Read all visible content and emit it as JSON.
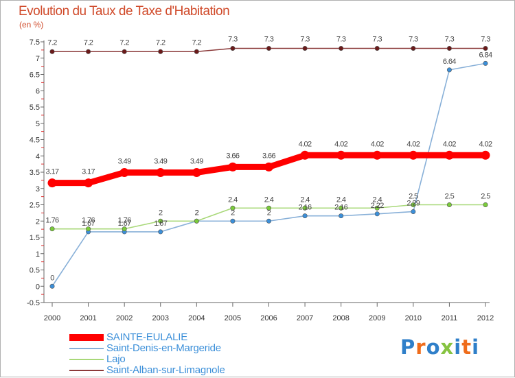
{
  "header": {
    "title": "Evolution du Taux de Taxe d'Habitation",
    "subtitle": "(en %)"
  },
  "logo": {
    "text": "Proxiti",
    "letter_colors": [
      "#2f7fc9",
      "#ef6c1b",
      "#2f7fc9",
      "#86c341",
      "#2f7fc9",
      "#ef6c1b",
      "#2f7fc9"
    ]
  },
  "chart_data": {
    "type": "line",
    "title": "Evolution du Taux de Taxe d'Habitation",
    "subtitle": "(en %)",
    "xlabel": "",
    "ylabel": "(en %)",
    "x": [
      "2000",
      "2001",
      "2002",
      "2003",
      "2004",
      "2005",
      "2006",
      "2007",
      "2008",
      "2009",
      "2010",
      "2011",
      "2012"
    ],
    "ylim": [
      -0.5,
      7.5
    ],
    "yticks": [
      "-0.5",
      "0",
      "0.5",
      "1",
      "1.5",
      "2",
      "2.5",
      "3",
      "3.5",
      "4",
      "4.5",
      "5",
      "5.5",
      "6",
      "6.5",
      "7",
      "7.5"
    ],
    "grid": false,
    "legend_position": "bottom-left",
    "series": [
      {
        "name": "SAINTE-EULALIE",
        "color": "#ff0000",
        "marker_color": "#ff0000",
        "values": [
          3.17,
          3.17,
          3.49,
          3.49,
          3.49,
          3.66,
          3.66,
          4.02,
          4.02,
          4.02,
          4.02,
          4.02,
          4.02
        ],
        "labels": [
          "3.17",
          "3.17",
          "3.49",
          "3.49",
          "3.49",
          "3.66",
          "3.66",
          "4.02",
          "4.02",
          "4.02",
          "4.02",
          "4.02",
          "4.02"
        ]
      },
      {
        "name": "Saint-Denis-en-Margeride",
        "color": "#88b0d8",
        "marker_color": "#3b8fd9",
        "values": [
          0,
          1.67,
          1.67,
          1.67,
          2,
          2,
          2,
          2.16,
          2.16,
          2.22,
          2.29,
          6.64,
          6.84
        ],
        "labels": [
          "0",
          "1.67",
          "1.67",
          "1.67",
          "2",
          "2",
          "2",
          "2.16",
          "2.16",
          "2.22",
          "2.29",
          "6.64",
          "6.84"
        ]
      },
      {
        "name": "Lajo",
        "color": "#a8d878",
        "marker_color": "#7acb3a",
        "values": [
          1.76,
          1.76,
          1.76,
          2,
          2,
          2.4,
          2.4,
          2.4,
          2.4,
          2.4,
          2.5,
          2.5,
          2.5
        ],
        "labels": [
          "1.76",
          "1.76",
          "1.76",
          "2",
          "2",
          "2.4",
          "2.4",
          "2.4",
          "2.4",
          "2.4",
          "2.5",
          "2.5",
          "2.5"
        ]
      },
      {
        "name": "Saint-Alban-sur-Limagnole",
        "color": "#8b3a3a",
        "marker_color": "#6b1a1a",
        "values": [
          7.2,
          7.2,
          7.2,
          7.2,
          7.2,
          7.3,
          7.3,
          7.3,
          7.3,
          7.3,
          7.3,
          7.3,
          7.3
        ],
        "labels": [
          "7.2",
          "7.2",
          "7.2",
          "7.2",
          "7.2",
          "7.3",
          "7.3",
          "7.3",
          "7.3",
          "7.3",
          "7.3",
          "7.3",
          "7.3"
        ]
      }
    ]
  }
}
